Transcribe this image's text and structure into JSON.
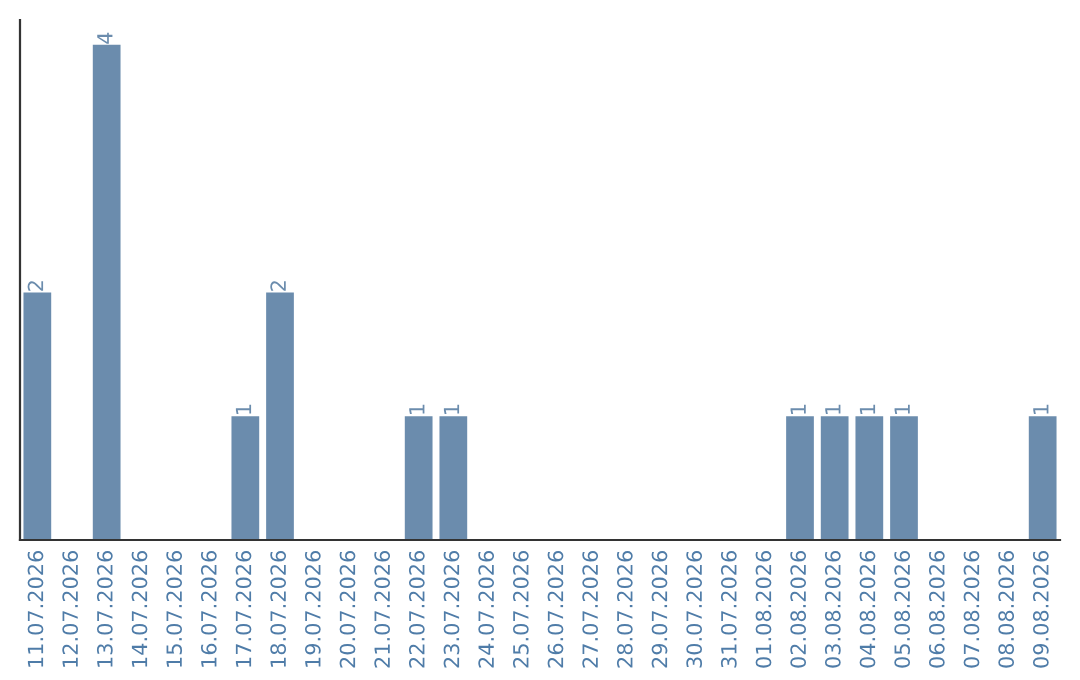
{
  "chart_data": {
    "type": "bar",
    "categories": [
      "11.07.2026",
      "12.07.2026",
      "13.07.2026",
      "14.07.2026",
      "15.07.2026",
      "16.07.2026",
      "17.07.2026",
      "18.07.2026",
      "19.07.2026",
      "20.07.2026",
      "21.07.2026",
      "22.07.2026",
      "23.07.2026",
      "24.07.2026",
      "25.07.2026",
      "26.07.2026",
      "27.07.2026",
      "28.07.2026",
      "29.07.2026",
      "30.07.2026",
      "31.07.2026",
      "01.08.2026",
      "02.08.2026",
      "03.08.2026",
      "04.08.2026",
      "05.08.2026",
      "06.08.2026",
      "07.08.2026",
      "08.08.2026",
      "09.08.2026"
    ],
    "values": [
      2,
      0,
      4,
      0,
      0,
      0,
      1,
      2,
      0,
      0,
      0,
      1,
      1,
      0,
      0,
      0,
      0,
      0,
      0,
      0,
      0,
      0,
      1,
      1,
      1,
      1,
      0,
      0,
      0,
      1
    ],
    "value_labels": [
      "2",
      null,
      "4",
      null,
      null,
      null,
      "1",
      "2",
      null,
      null,
      null,
      "1",
      "1",
      null,
      null,
      null,
      null,
      null,
      null,
      null,
      null,
      null,
      "1",
      "1",
      "1",
      "1",
      null,
      null,
      null,
      "1"
    ],
    "color": "#6b8cad",
    "tick_labels": "x"
  }
}
